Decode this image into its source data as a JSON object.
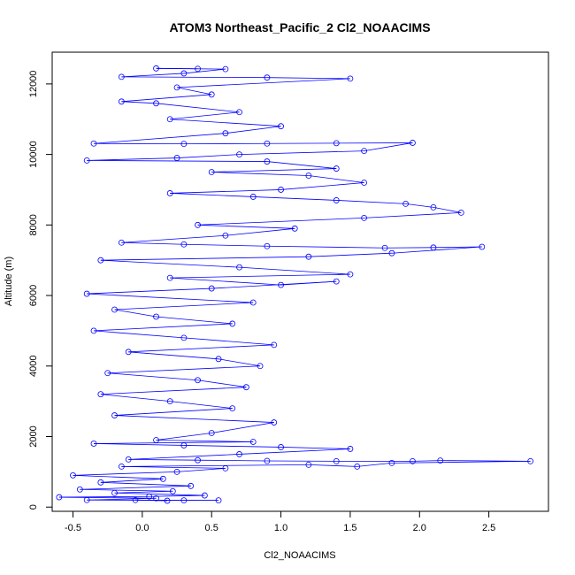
{
  "chart_data": {
    "type": "scatter",
    "title": "ATOM3 Northeast_Pacific_2 Cl2_NOAACIMS",
    "xlabel": "Cl2_NOAACIMS",
    "ylabel": "Altitude (m)",
    "xlim": [
      -0.65,
      2.93
    ],
    "ylim": [
      -120,
      12900
    ],
    "xticks": [
      -0.5,
      0.0,
      0.5,
      1.0,
      1.5,
      2.0,
      2.5
    ],
    "xtick_labels": [
      "-0.5",
      "0.0",
      "0.5",
      "1.0",
      "1.5",
      "2.0",
      "2.5"
    ],
    "yticks": [
      0,
      2000,
      4000,
      6000,
      8000,
      10000,
      12000
    ],
    "ytick_labels": [
      "0",
      "2000",
      "4000",
      "6000",
      "8000",
      "10000",
      "12000"
    ],
    "grid": false,
    "legend": "none",
    "series_color": "#0000ff",
    "marker": "open-circle",
    "connected": true,
    "series": [
      {
        "points": [
          [
            0.18,
            180
          ],
          [
            -0.05,
            200
          ],
          [
            0.3,
            190
          ],
          [
            0.55,
            190
          ],
          [
            -0.4,
            200
          ],
          [
            0.1,
            250
          ],
          [
            -0.6,
            280
          ],
          [
            0.05,
            300
          ],
          [
            0.45,
            330
          ],
          [
            -0.2,
            400
          ],
          [
            0.22,
            450
          ],
          [
            -0.45,
            500
          ],
          [
            0.35,
            600
          ],
          [
            -0.3,
            700
          ],
          [
            0.15,
            800
          ],
          [
            -0.5,
            900
          ],
          [
            0.25,
            1000
          ],
          [
            0.6,
            1100
          ],
          [
            -0.15,
            1150
          ],
          [
            1.2,
            1200
          ],
          [
            1.55,
            1150
          ],
          [
            1.8,
            1250
          ],
          [
            2.8,
            1300
          ],
          [
            2.15,
            1320
          ],
          [
            1.95,
            1300
          ],
          [
            1.4,
            1300
          ],
          [
            0.9,
            1310
          ],
          [
            0.4,
            1330
          ],
          [
            -0.1,
            1350
          ],
          [
            0.7,
            1500
          ],
          [
            1.5,
            1650
          ],
          [
            1.0,
            1700
          ],
          [
            0.3,
            1750
          ],
          [
            -0.35,
            1800
          ],
          [
            0.8,
            1850
          ],
          [
            0.1,
            1900
          ],
          [
            0.5,
            2100
          ],
          [
            0.95,
            2400
          ],
          [
            -0.2,
            2600
          ],
          [
            0.65,
            2800
          ],
          [
            0.2,
            3000
          ],
          [
            -0.3,
            3200
          ],
          [
            0.75,
            3400
          ],
          [
            0.4,
            3600
          ],
          [
            -0.25,
            3800
          ],
          [
            0.85,
            4000
          ],
          [
            0.55,
            4200
          ],
          [
            -0.1,
            4400
          ],
          [
            0.95,
            4600
          ],
          [
            0.3,
            4800
          ],
          [
            -0.35,
            5000
          ],
          [
            0.65,
            5200
          ],
          [
            0.1,
            5400
          ],
          [
            -0.2,
            5600
          ],
          [
            0.8,
            5800
          ],
          [
            -0.4,
            6050
          ],
          [
            0.5,
            6200
          ],
          [
            1.4,
            6400
          ],
          [
            1.0,
            6300
          ],
          [
            0.2,
            6500
          ],
          [
            1.5,
            6600
          ],
          [
            0.7,
            6800
          ],
          [
            -0.3,
            7000
          ],
          [
            1.2,
            7100
          ],
          [
            1.8,
            7200
          ],
          [
            2.45,
            7380
          ],
          [
            2.1,
            7360
          ],
          [
            1.75,
            7350
          ],
          [
            0.9,
            7400
          ],
          [
            0.3,
            7450
          ],
          [
            -0.15,
            7500
          ],
          [
            0.6,
            7700
          ],
          [
            1.1,
            7900
          ],
          [
            0.4,
            8000
          ],
          [
            1.6,
            8200
          ],
          [
            2.3,
            8350
          ],
          [
            2.1,
            8500
          ],
          [
            1.9,
            8600
          ],
          [
            1.4,
            8700
          ],
          [
            0.8,
            8800
          ],
          [
            0.2,
            8900
          ],
          [
            1.0,
            9000
          ],
          [
            1.6,
            9200
          ],
          [
            1.2,
            9400
          ],
          [
            0.5,
            9500
          ],
          [
            1.4,
            9600
          ],
          [
            0.9,
            9800
          ],
          [
            -0.4,
            9830
          ],
          [
            0.25,
            9900
          ],
          [
            0.7,
            10000
          ],
          [
            1.6,
            10100
          ],
          [
            1.95,
            10330
          ],
          [
            1.4,
            10320
          ],
          [
            0.9,
            10310
          ],
          [
            0.3,
            10300
          ],
          [
            -0.35,
            10310
          ],
          [
            0.6,
            10600
          ],
          [
            1.0,
            10800
          ],
          [
            0.2,
            11000
          ],
          [
            0.7,
            11200
          ],
          [
            0.1,
            11450
          ],
          [
            -0.15,
            11500
          ],
          [
            0.5,
            11700
          ],
          [
            0.25,
            11900
          ],
          [
            1.5,
            12150
          ],
          [
            0.9,
            12180
          ],
          [
            -0.15,
            12200
          ],
          [
            0.3,
            12300
          ],
          [
            0.6,
            12420
          ],
          [
            0.1,
            12440
          ],
          [
            0.4,
            12430
          ]
        ]
      }
    ]
  }
}
